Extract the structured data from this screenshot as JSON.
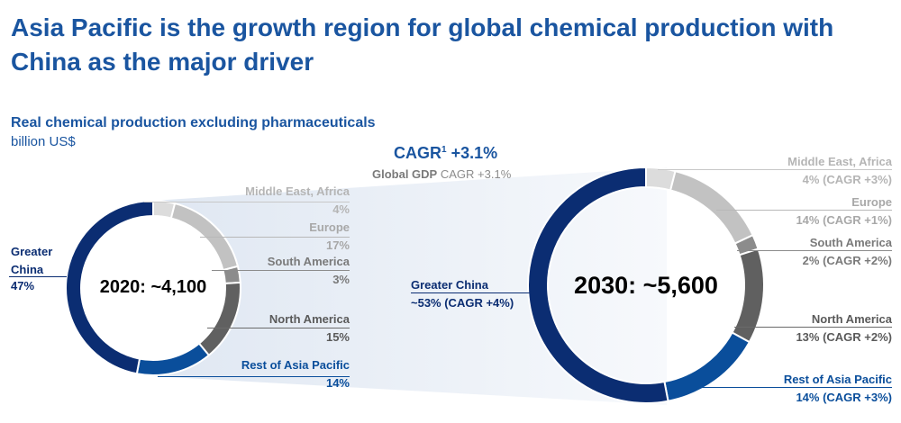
{
  "title": "Asia Pacific is the growth region for global chemical production with China as the major driver",
  "subtitle": "Real chemical production excluding pharmaceuticals",
  "unit": "billion US$",
  "cagr_label": "CAGR",
  "cagr_footnote": "1",
  "cagr_value": "+3.1%",
  "gdp_bold": "Global GDP",
  "gdp_rest": "CAGR +3.1%",
  "colors": {
    "title": "#1a55a0",
    "greater_china": "#0b2d72",
    "rest_apac": "#0a4e9b",
    "north_america": "#606060",
    "south_america": "#8c8c8c",
    "europe": "#c2c2c2",
    "middle_east": "#dcdcdc"
  },
  "chart_data": [
    {
      "type": "pie",
      "title": "2020: ~4,100",
      "categories": [
        "Middle East, Africa",
        "Europe",
        "South America",
        "North America",
        "Rest of Asia Pacific",
        "Greater China"
      ],
      "values": [
        4,
        17,
        3,
        15,
        14,
        47
      ],
      "labels": [
        "4%",
        "17%",
        "3%",
        "15%",
        "14%",
        "47%"
      ]
    },
    {
      "type": "pie",
      "title": "2030: ~5,600",
      "categories": [
        "Middle East, Africa",
        "Europe",
        "South America",
        "North America",
        "Rest of Asia Pacific",
        "Greater China"
      ],
      "values": [
        4,
        14,
        2,
        13,
        14,
        53
      ],
      "labels": [
        "4% (CAGR +3%)",
        "14% (CAGR +1%)",
        "2% (CAGR +2%)",
        "13% (CAGR +2%)",
        "14% (CAGR +3%)",
        "~53% (CAGR +4%)"
      ]
    }
  ],
  "left_gc_line1": "Greater",
  "left_gc_line2": "China"
}
